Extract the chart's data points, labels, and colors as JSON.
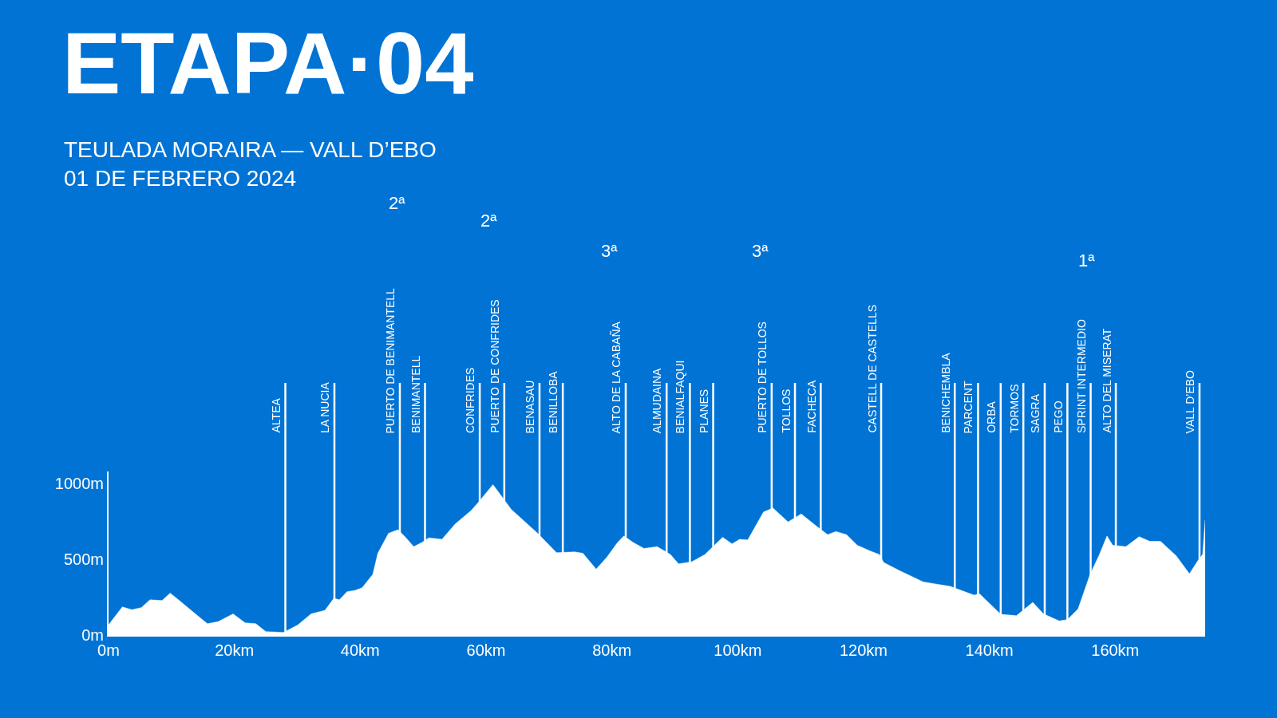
{
  "chart_data": {
    "type": "area",
    "title": "ETAPA·04",
    "subtitle": "TEULADA MORAIRA — VALL D’EBO\n01 DE FEBRERO 2024",
    "x": [
      0,
      2.2,
      3.7,
      5.2,
      6.6,
      8.5,
      9.8,
      11.1,
      15.7,
      17.4,
      19.8,
      21.7,
      23.4,
      25.0,
      27.8,
      30.1,
      32.2,
      34.4,
      35.8,
      36.7,
      37.9,
      39.2,
      40.3,
      42.0,
      42.8,
      44.5,
      46.0,
      47.2,
      48.5,
      49.8,
      50.9,
      53.0,
      55.1,
      57.6,
      58.9,
      61.1,
      62.3,
      64.0,
      66.1,
      68.2,
      71.2,
      74.1,
      75.4,
      77.5,
      79.2,
      80.9,
      81.9,
      83.4,
      85.1,
      87.2,
      89.3,
      90.6,
      92.7,
      94.8,
      97.6,
      99.1,
      100.3,
      101.6,
      104.1,
      105.6,
      108.0,
      110.1,
      112.6,
      114.3,
      115.6,
      117.3,
      119.0,
      121.1,
      122.5,
      123.2,
      125.7,
      129.5,
      133.8,
      137.6,
      138.4,
      141.8,
      144.3,
      146.9,
      148.6,
      151.1,
      152.4,
      154.1,
      156.0,
      157.4,
      158.7,
      159.6,
      161.7,
      163.8,
      165.5,
      167.2,
      169.7,
      171.8,
      173.1,
      173.9,
      174.3
    ],
    "series": [
      {
        "color": "#ffffff",
        "values": [
          67,
          186,
          167,
          181,
          233,
          228,
          277,
          233,
          75,
          88,
          140,
          81,
          75,
          23,
          17,
          67,
          140,
          163,
          242,
          233,
          286,
          295,
          312,
          400,
          540,
          672,
          695,
          646,
          584,
          611,
          642,
          632,
          733,
          821,
          882,
          993,
          926,
          830,
          751,
          672,
          544,
          549,
          540,
          435,
          514,
          611,
          654,
          611,
          572,
          584,
          532,
          470,
          484,
          532,
          646,
          602,
          632,
          628,
          812,
          839,
          747,
          800,
          716,
          663,
          684,
          663,
          593,
          554,
          532,
          479,
          426,
          351,
          321,
          263,
          274,
          137,
          128,
          216,
          140,
          93,
          102,
          172,
          400,
          523,
          654,
          593,
          584,
          649,
          619,
          619,
          523,
          404,
          488,
          532,
          760
        ]
      }
    ],
    "xlim": [
      0,
      174.3
    ],
    "ylim": [
      0,
      1080
    ],
    "xticks": [
      {
        "value": 0,
        "label": "0m"
      },
      {
        "value": 20,
        "label": "20km"
      },
      {
        "value": 40,
        "label": "40km"
      },
      {
        "value": 60,
        "label": "60km"
      },
      {
        "value": 80,
        "label": "80km"
      },
      {
        "value": 100,
        "label": "100km"
      },
      {
        "value": 120,
        "label": "120km"
      },
      {
        "value": 140,
        "label": "140km"
      },
      {
        "value": 160,
        "label": "160km"
      }
    ],
    "yticks": [
      {
        "value": 0,
        "label": "0m"
      },
      {
        "value": 500,
        "label": "500m"
      },
      {
        "value": 1000,
        "label": "1000m"
      }
    ],
    "ref_lines": [
      {
        "axis": "x",
        "value": 28.1,
        "label": "ALTEA"
      },
      {
        "axis": "x",
        "value": 35.9,
        "label": "LA NUCIA"
      },
      {
        "axis": "x",
        "value": 46.3,
        "label": "PUERTO DE BENIMANTELL"
      },
      {
        "axis": "x",
        "value": 50.3,
        "label": "BENIMANTELL"
      },
      {
        "axis": "x",
        "value": 59.0,
        "label": "CONFRIDES"
      },
      {
        "axis": "x",
        "value": 62.9,
        "label": "PUERTO DE CONFRIDES"
      },
      {
        "axis": "x",
        "value": 68.5,
        "label": "BENASAU"
      },
      {
        "axis": "x",
        "value": 72.2,
        "label": "BENILLOBA"
      },
      {
        "axis": "x",
        "value": 82.2,
        "label": "ALTO DE LA CABAÑA"
      },
      {
        "axis": "x",
        "value": 88.7,
        "label": "ALMUDAINA"
      },
      {
        "axis": "x",
        "value": 92.4,
        "label": "BENIALFAQUI"
      },
      {
        "axis": "x",
        "value": 96.1,
        "label": "PLANES"
      },
      {
        "axis": "x",
        "value": 105.4,
        "label": "PUERTO DE TOLLOS"
      },
      {
        "axis": "x",
        "value": 109.1,
        "label": "TOLLOS"
      },
      {
        "axis": "x",
        "value": 113.2,
        "label": "FACHECA"
      },
      {
        "axis": "x",
        "value": 122.8,
        "label": "CASTELL DE CASTELLS"
      },
      {
        "axis": "x",
        "value": 134.5,
        "label": "BENICHEMBLA"
      },
      {
        "axis": "x",
        "value": 138.2,
        "label": "PARCENT"
      },
      {
        "axis": "x",
        "value": 141.8,
        "label": "ORBA"
      },
      {
        "axis": "x",
        "value": 145.4,
        "label": "TORMOS"
      },
      {
        "axis": "x",
        "value": 148.8,
        "label": "SAGRA"
      },
      {
        "axis": "x",
        "value": 152.4,
        "label": "PEGO"
      },
      {
        "axis": "x",
        "value": 156.1,
        "label": "SPRINT INTERMEDIO"
      },
      {
        "axis": "x",
        "value": 160.1,
        "label": "ALTO DEL MISERAT"
      },
      {
        "axis": "x",
        "value": 173.4,
        "label": "VALL D’EBO"
      }
    ],
    "annotations": [
      "2ª",
      "2ª",
      "3ª",
      "3ª",
      "1ª"
    ]
  }
}
